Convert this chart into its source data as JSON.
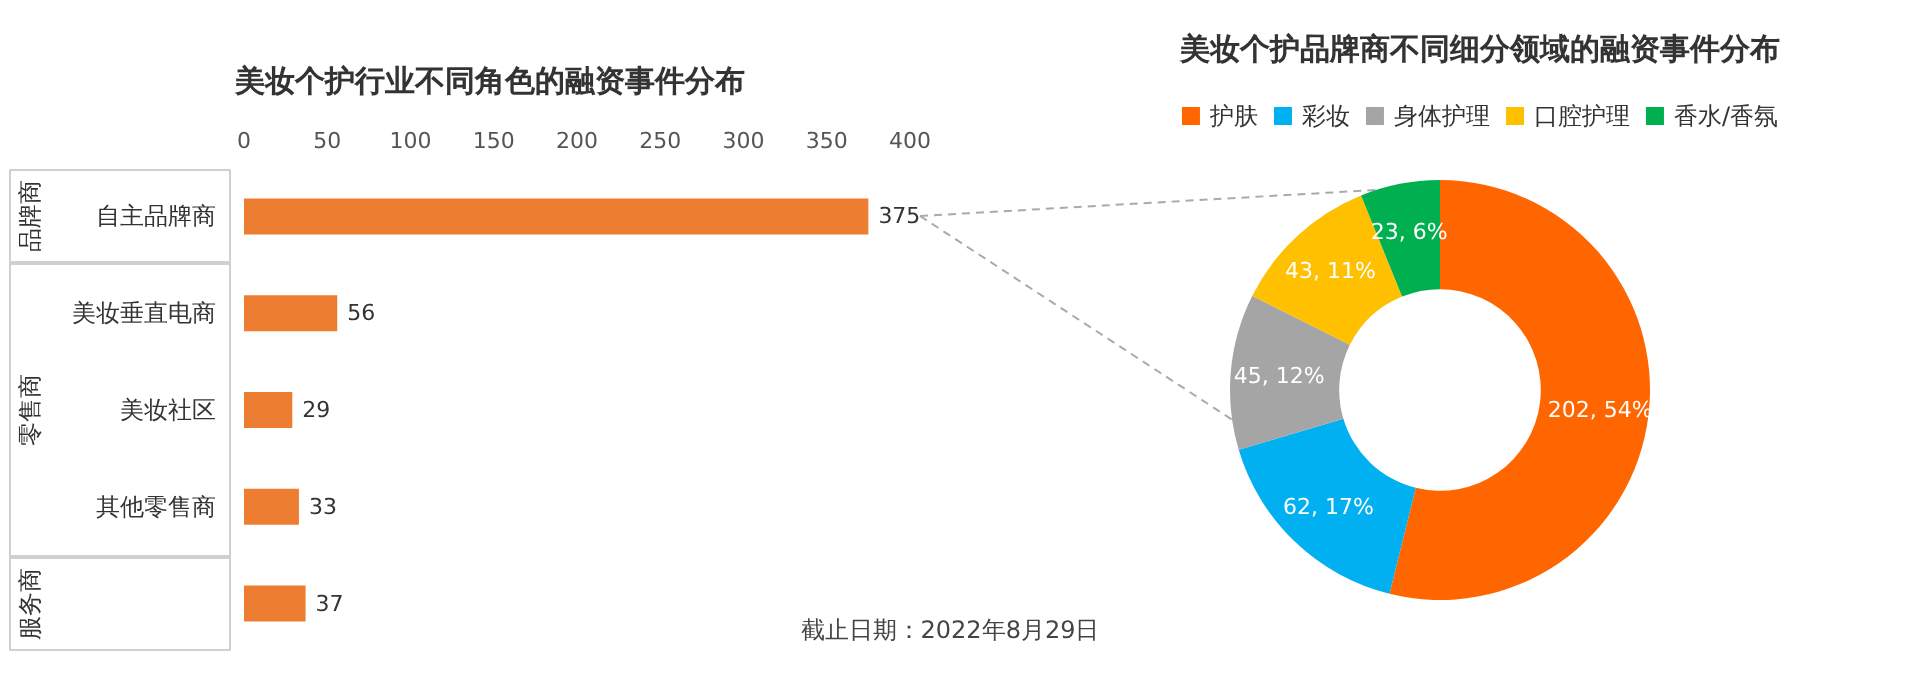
{
  "chart_data": [
    {
      "type": "bar",
      "orientation": "horizontal",
      "title": "美妆个护行业不同角色的融资事件分布",
      "categories": [
        "自主品牌商",
        "美妆垂直电商",
        "美妆社区",
        "其他零售商",
        null
      ],
      "values": [
        375,
        56,
        29,
        33,
        37
      ],
      "color": "#ed7d31",
      "data_labels": true,
      "xlim": [
        0,
        400
      ],
      "xticks": [
        0,
        50,
        100,
        150,
        200,
        250,
        300,
        350,
        400
      ],
      "grid": false,
      "legend": false,
      "annotations": [
        "品牌商",
        "零售商",
        "服务商",
        "截止日期：2022年8月29日"
      ]
    },
    {
      "type": "donut",
      "title": "美妆个护品牌商不同细分领域的融资事件分布",
      "categories": [
        "护肤",
        "彩妆",
        "身体护理",
        "口腔护理",
        "香水/香氛"
      ],
      "values": [
        202,
        62,
        45,
        43,
        23
      ],
      "colors": [
        "#ff6600",
        "#00b0f0",
        "#a5a5a5",
        "#ffc000",
        "#00b050"
      ],
      "value_labels": [
        "202, 54%",
        "62, 17%",
        "45, 12%",
        "43, 11%",
        "23, 6%"
      ],
      "legend": "top"
    }
  ]
}
